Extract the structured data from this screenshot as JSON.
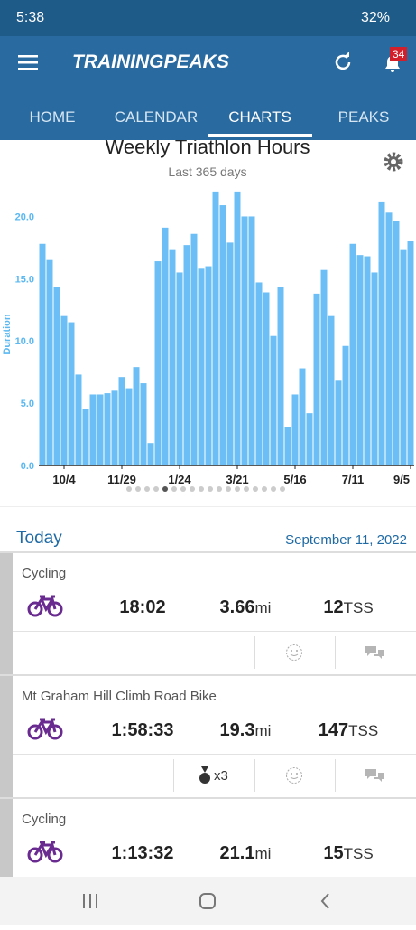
{
  "status_bar": {
    "time": "5:38",
    "battery": "32%"
  },
  "app_bar": {
    "logo": "TRAININGPEAKS",
    "badge": "34"
  },
  "tabs": [
    "HOME",
    "CALENDAR",
    "CHARTS",
    "PEAKS"
  ],
  "chart_data": {
    "type": "bar",
    "title": "Weekly Triathlon Hours",
    "subtitle": "Last 365 days",
    "y_label": "Duration",
    "categories": [
      null,
      null,
      null,
      "10/4",
      null,
      null,
      null,
      null,
      null,
      null,
      null,
      "11/29",
      null,
      null,
      null,
      null,
      null,
      null,
      null,
      "1/24",
      null,
      null,
      null,
      null,
      null,
      null,
      null,
      "3/21",
      null,
      null,
      null,
      null,
      null,
      null,
      null,
      "5/16",
      null,
      null,
      null,
      null,
      null,
      null,
      null,
      "7/11",
      null,
      null,
      null,
      null,
      null,
      null,
      null,
      "9/5"
    ],
    "values": [
      17.8,
      16.5,
      14.3,
      12.0,
      11.5,
      7.3,
      4.5,
      5.7,
      5.7,
      5.8,
      6.0,
      7.1,
      6.2,
      7.9,
      6.6,
      1.8,
      16.4,
      19.1,
      17.3,
      15.5,
      17.7,
      18.6,
      15.8,
      16.0,
      22.0,
      20.9,
      17.9,
      22.0,
      20.0,
      20.0,
      14.7,
      13.9,
      10.4,
      14.3,
      3.1,
      5.7,
      7.8,
      4.2,
      13.8,
      15.7,
      12.0,
      6.8,
      9.6,
      17.8,
      16.9,
      16.8,
      15.5,
      21.2,
      20.3,
      19.6,
      17.3,
      18.0
    ],
    "color": "#6cbff6",
    "ylim": [
      0,
      22.5
    ],
    "yticks": [
      {
        "value": 0,
        "label": "0.0"
      },
      {
        "value": 5,
        "label": "5.0"
      },
      {
        "value": 10,
        "label": "10.0"
      },
      {
        "value": 15,
        "label": "15.0"
      },
      {
        "value": 20,
        "label": "20.0"
      }
    ],
    "grid": false
  },
  "today": {
    "label": "Today",
    "date": "September 11, 2022"
  },
  "workouts": [
    {
      "title": "Cycling",
      "duration": "18:02",
      "distance": "3.66",
      "distance_unit": "mi",
      "tss": "12",
      "tss_unit": "TSS"
    },
    {
      "title": "Mt Graham Hill Climb Road Bike",
      "duration": "1:58:33",
      "distance": "19.3",
      "distance_unit": "mi",
      "tss": "147",
      "tss_unit": "TSS",
      "medals": "x3"
    },
    {
      "title": "Cycling",
      "duration": "1:13:32",
      "distance": "21.1",
      "distance_unit": "mi",
      "tss": "15",
      "tss_unit": "TSS"
    }
  ]
}
